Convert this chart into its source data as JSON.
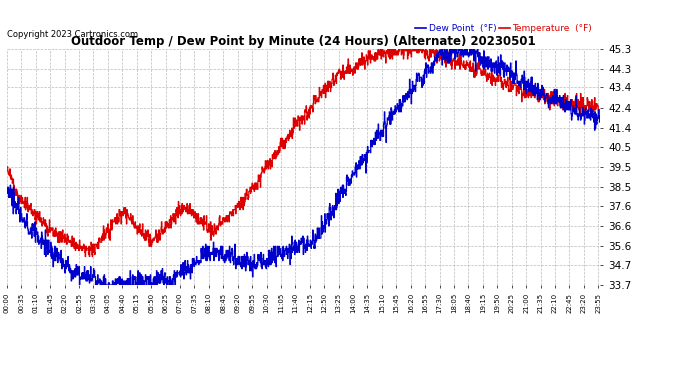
{
  "title": "Outdoor Temp / Dew Point by Minute (24 Hours) (Alternate) 20230501",
  "copyright": "Copyright 2023 Cartronics.com",
  "ylim": [
    33.7,
    45.3
  ],
  "yticks": [
    33.7,
    34.7,
    35.6,
    36.6,
    37.6,
    38.5,
    39.5,
    40.5,
    41.4,
    42.4,
    43.4,
    44.3,
    45.3
  ],
  "bg_color": "#ffffff",
  "grid_color": "#bbbbbb",
  "temp_color": "#dd0000",
  "dew_color": "#0000cc",
  "legend_dew_label": "Dew Point  (°F)",
  "legend_temp_label": "Temperature  (°F)",
  "xtick_interval": 35,
  "total_minutes": 1440
}
